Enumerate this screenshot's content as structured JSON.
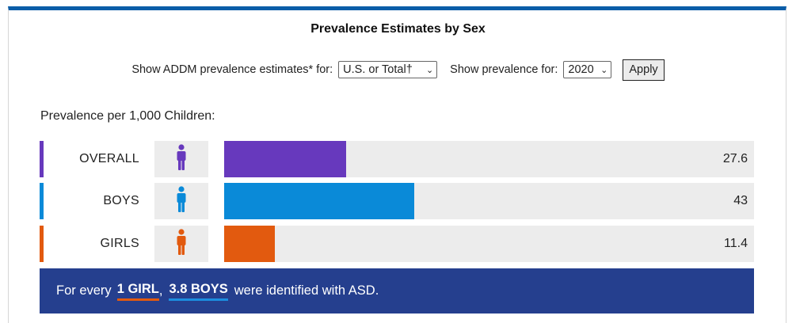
{
  "title": "Prevalence Estimates by Sex",
  "controls": {
    "estimates_label": "Show ADDM prevalence estimates* for:",
    "region_value": "U.S. or Total†",
    "prevalence_for_label": "Show prevalence for:",
    "year_value": "2020",
    "apply_label": "Apply"
  },
  "chart_data": {
    "type": "bar",
    "orientation": "horizontal",
    "subtitle": "Prevalence per 1,000 Children:",
    "categories": [
      "OVERALL",
      "BOYS",
      "GIRLS"
    ],
    "values": [
      27.6,
      43,
      11.4
    ],
    "value_labels": [
      "27.6",
      "43",
      "11.4"
    ],
    "colors": [
      "#6739bd",
      "#0a8ad8",
      "#e25a0f"
    ],
    "icons": [
      "person-icon",
      "boy-icon",
      "girl-icon"
    ],
    "xlim": [
      0,
      120
    ],
    "grid": false,
    "legend": "none"
  },
  "ratio": {
    "prefix": "For every",
    "girl": "1 GIRL",
    "sep": ",",
    "boys": "3.8 BOYS",
    "suffix": "were identified with ASD."
  }
}
